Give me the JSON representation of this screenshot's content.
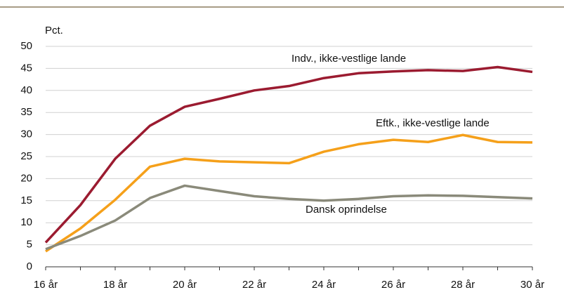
{
  "chart_data": {
    "type": "line",
    "ylabel": "Pct.",
    "categories": [
      "16 år",
      null,
      "18 år",
      null,
      "20 år",
      null,
      "22 år",
      null,
      "24 år",
      null,
      "26 år",
      null,
      "28 år",
      null,
      "30 år"
    ],
    "series": [
      {
        "name": "Indv., ikke-vestlige lande",
        "color": "#9b1b30",
        "values": [
          5.5,
          14,
          24.5,
          32,
          36.3,
          38.1,
          40,
          41,
          42.8,
          43.9,
          44.3,
          44.6,
          44.4,
          45.3,
          44.2
        ]
      },
      {
        "name": "Eftk., ikke-vestlige lande",
        "color": "#f5a01a",
        "values": [
          3.5,
          8.7,
          15.2,
          22.7,
          24.5,
          23.9,
          23.7,
          23.5,
          26.1,
          27.8,
          28.8,
          28.3,
          29.9,
          28.3,
          28.2
        ]
      },
      {
        "name": "Dansk oprindelse",
        "color": "#8a8a7a",
        "values": [
          4,
          7,
          10.5,
          15.6,
          18.4,
          17.2,
          16,
          15.4,
          15,
          15.4,
          16,
          16.2,
          16.1,
          15.8,
          15.5
        ]
      }
    ],
    "ylim": [
      0,
      50
    ],
    "yticks": [
      0,
      5,
      10,
      15,
      20,
      25,
      30,
      35,
      40,
      45,
      50
    ],
    "grid": true
  }
}
